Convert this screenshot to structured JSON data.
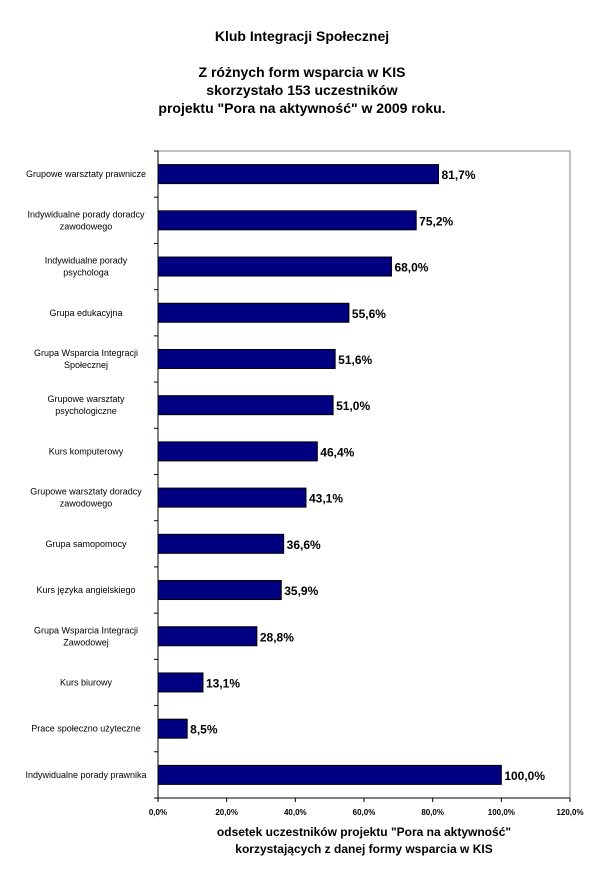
{
  "chart_data": {
    "type": "bar",
    "orientation": "horizontal",
    "title": "Klub Integracji Społecznej",
    "subtitle_lines": [
      "Z różnych form wsparcia w KIS",
      "skorzystało 153  uczestników",
      "projektu \"Pora na aktywność\" w 2009 roku."
    ],
    "categories": [
      [
        "Grupowe warsztaty prawnicze"
      ],
      [
        "Indywidualne porady doradcy",
        "zawodowego"
      ],
      [
        "Indywidualne porady",
        "psychologa"
      ],
      [
        "Grupa edukacyjna"
      ],
      [
        "Grupa Wsparcia Integracji",
        "Społecznej"
      ],
      [
        "Grupowe warsztaty",
        "psychologiczne"
      ],
      [
        "Kurs komputerowy"
      ],
      [
        "Grupowe warsztaty doradcy",
        "zawodowego"
      ],
      [
        "Grupa samopomocy"
      ],
      [
        "Kurs języka angielskiego"
      ],
      [
        "Grupa Wsparcia Integracji",
        "Zawodowej"
      ],
      [
        "Kurs biurowy"
      ],
      [
        "Prace społeczno użyteczne"
      ],
      [
        "Indywidualne porady prawnika"
      ]
    ],
    "values": [
      81.7,
      75.2,
      68.0,
      55.6,
      51.6,
      51.0,
      46.4,
      43.1,
      36.6,
      35.9,
      28.8,
      13.1,
      8.5,
      100.0
    ],
    "value_labels": [
      "81,7%",
      "75,2%",
      "68,0%",
      "55,6%",
      "51,6%",
      "51,0%",
      "46,4%",
      "43,1%",
      "36,6%",
      "35,9%",
      "28,8%",
      "13,1%",
      "8,5%",
      "100,0%"
    ],
    "xlim": [
      0,
      120
    ],
    "x_ticks": [
      0,
      20,
      40,
      60,
      80,
      100,
      120
    ],
    "x_tick_labels": [
      "0,0%",
      "20,0%",
      "40,0%",
      "60,0%",
      "80,0%",
      "100,0%",
      "120,0%"
    ],
    "xlabel_lines": [
      "odsetek uczestników projektu \"Pora na aktywność\"",
      "korzystających z danej formy wsparcia w KIS"
    ],
    "grid": false,
    "legend": "none",
    "colors": {
      "bar": "#000080",
      "bar_edge": "#000000",
      "axis": "#808080",
      "text": "#000000"
    }
  }
}
